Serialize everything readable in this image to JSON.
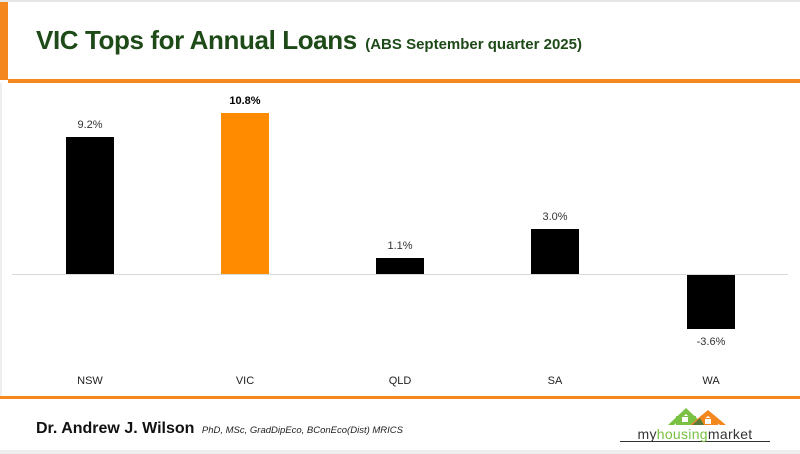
{
  "header": {
    "title": "VIC Tops for Annual Loans",
    "subtitle": "(ABS September quarter 2025)"
  },
  "chart_data": {
    "type": "bar",
    "title": "VIC Tops for Annual Loans",
    "subtitle": "(ABS September quarter 2025)",
    "categories": [
      "NSW",
      "VIC",
      "QLD",
      "SA",
      "WA"
    ],
    "values": [
      9.2,
      10.8,
      1.1,
      3.0,
      -3.6
    ],
    "value_labels": [
      "9.2%",
      "10.8%",
      "1.1%",
      "3.0%",
      "-3.6%"
    ],
    "colors": [
      "#000000",
      "#ff8c00",
      "#000000",
      "#000000",
      "#000000"
    ],
    "highlight": "VIC",
    "xlabel": "",
    "ylabel": "",
    "ylim": [
      -4,
      11
    ],
    "grid": false,
    "legend": "none"
  },
  "footer": {
    "author": "Dr. Andrew J. Wilson",
    "credentials": "PhD, MSc, GradDipEco, BConEco(Dist) MRICS",
    "logo": {
      "part1": "my",
      "part2": "housing",
      "part3": "market"
    }
  },
  "colors": {
    "accent": "#f5871f",
    "title": "#1e4a18",
    "highlight_bar": "#ff8c00",
    "bar": "#000000"
  }
}
